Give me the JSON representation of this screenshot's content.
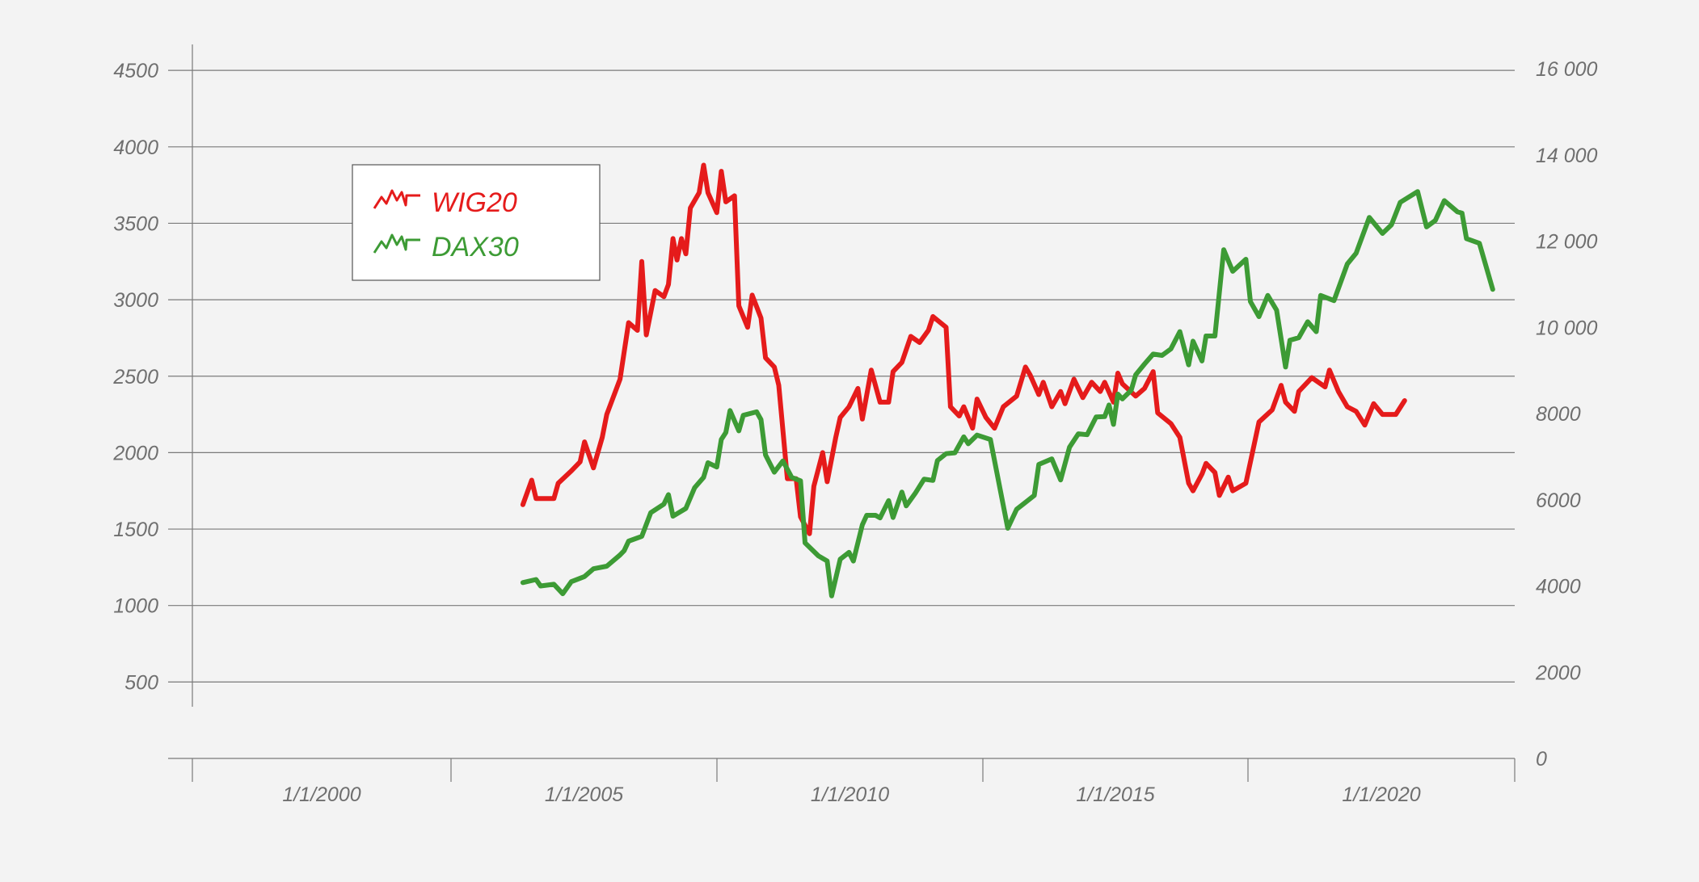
{
  "chart_data": {
    "type": "line",
    "legend": {
      "position": "top-left",
      "entries": [
        "WIG20",
        "DAX30"
      ]
    },
    "x_axis": {
      "type": "date",
      "range": [
        "1998-01-01",
        "2022-12-31"
      ],
      "tick_labels": [
        "1/1/2000",
        "1/1/2005",
        "1/1/2010",
        "1/1/2015",
        "1/1/2020"
      ],
      "grid": false
    },
    "y_left": {
      "range": [
        0,
        4500
      ],
      "tick_values": [
        500,
        1000,
        1500,
        2000,
        2500,
        3000,
        3500,
        4000,
        4500
      ],
      "tick_labels": [
        "500",
        "1000",
        "1500",
        "2000",
        "2500",
        "3000",
        "3500",
        "4000",
        "4500"
      ],
      "grid": true
    },
    "y_right": {
      "range": [
        0,
        16000
      ],
      "tick_values": [
        0,
        2000,
        4000,
        6000,
        8000,
        10000,
        12000,
        14000,
        16000
      ],
      "tick_labels": [
        "0",
        "2000",
        "4000",
        "6000",
        "8000",
        "10 000",
        "12 000",
        "14 000",
        "16 000"
      ]
    },
    "series": [
      {
        "name": "WIG20",
        "color": "#e51b1b",
        "axis": "left",
        "points": [
          [
            "2004-04-01",
            1660
          ],
          [
            "2004-06-01",
            1820
          ],
          [
            "2004-07-01",
            1700
          ],
          [
            "2004-09-01",
            1700
          ],
          [
            "2004-11-01",
            1700
          ],
          [
            "2004-12-01",
            1800
          ],
          [
            "2005-03-01",
            1880
          ],
          [
            "2005-05-01",
            1940
          ],
          [
            "2005-06-01",
            2070
          ],
          [
            "2005-08-01",
            1900
          ],
          [
            "2005-10-01",
            2100
          ],
          [
            "2005-11-01",
            2250
          ],
          [
            "2006-02-01",
            2480
          ],
          [
            "2006-04-01",
            2850
          ],
          [
            "2006-06-01",
            2800
          ],
          [
            "2006-07-01",
            3250
          ],
          [
            "2006-08-01",
            2770
          ],
          [
            "2006-10-01",
            3060
          ],
          [
            "2006-12-01",
            3020
          ],
          [
            "2007-01-01",
            3100
          ],
          [
            "2007-02-01",
            3400
          ],
          [
            "2007-03-01",
            3260
          ],
          [
            "2007-04-01",
            3400
          ],
          [
            "2007-05-01",
            3300
          ],
          [
            "2007-06-01",
            3600
          ],
          [
            "2007-08-01",
            3700
          ],
          [
            "2007-09-01",
            3880
          ],
          [
            "2007-10-01",
            3700
          ],
          [
            "2007-12-01",
            3570
          ],
          [
            "2008-01-01",
            3840
          ],
          [
            "2008-02-01",
            3640
          ],
          [
            "2008-04-01",
            3680
          ],
          [
            "2008-05-01",
            2960
          ],
          [
            "2008-07-01",
            2820
          ],
          [
            "2008-08-01",
            3030
          ],
          [
            "2008-10-01",
            2880
          ],
          [
            "2008-11-01",
            2620
          ],
          [
            "2009-01-01",
            2560
          ],
          [
            "2009-02-01",
            2440
          ],
          [
            "2009-04-01",
            1830
          ],
          [
            "2009-06-01",
            1830
          ],
          [
            "2009-07-01",
            1580
          ],
          [
            "2009-09-01",
            1470
          ],
          [
            "2009-10-01",
            1780
          ],
          [
            "2009-12-01",
            2000
          ],
          [
            "2010-01-01",
            1810
          ],
          [
            "2010-03-01",
            2100
          ],
          [
            "2010-04-01",
            2230
          ],
          [
            "2010-06-01",
            2300
          ],
          [
            "2010-08-01",
            2420
          ],
          [
            "2010-09-01",
            2220
          ],
          [
            "2010-11-01",
            2540
          ],
          [
            "2011-01-01",
            2330
          ],
          [
            "2011-03-01",
            2330
          ],
          [
            "2011-04-01",
            2530
          ],
          [
            "2011-06-01",
            2590
          ],
          [
            "2011-08-01",
            2760
          ],
          [
            "2011-10-01",
            2720
          ],
          [
            "2011-12-01",
            2800
          ],
          [
            "2012-01-01",
            2890
          ],
          [
            "2012-04-01",
            2820
          ],
          [
            "2012-05-01",
            2300
          ],
          [
            "2012-07-01",
            2240
          ],
          [
            "2012-08-01",
            2300
          ],
          [
            "2012-10-01",
            2160
          ],
          [
            "2012-11-01",
            2350
          ],
          [
            "2013-01-01",
            2230
          ],
          [
            "2013-03-01",
            2160
          ],
          [
            "2013-05-01",
            2300
          ],
          [
            "2013-08-01",
            2370
          ],
          [
            "2013-10-01",
            2560
          ],
          [
            "2013-11-01",
            2510
          ],
          [
            "2014-01-01",
            2380
          ],
          [
            "2014-02-01",
            2460
          ],
          [
            "2014-04-01",
            2300
          ],
          [
            "2014-06-01",
            2400
          ],
          [
            "2014-07-01",
            2320
          ],
          [
            "2014-09-01",
            2480
          ],
          [
            "2014-11-01",
            2360
          ],
          [
            "2015-01-01",
            2460
          ],
          [
            "2015-03-01",
            2400
          ],
          [
            "2015-04-01",
            2460
          ],
          [
            "2015-06-01",
            2330
          ],
          [
            "2015-07-01",
            2520
          ],
          [
            "2015-08-01",
            2450
          ],
          [
            "2015-11-01",
            2370
          ],
          [
            "2016-01-01",
            2420
          ],
          [
            "2016-03-01",
            2530
          ],
          [
            "2016-04-01",
            2260
          ],
          [
            "2016-07-01",
            2190
          ],
          [
            "2016-09-01",
            2100
          ],
          [
            "2016-11-01",
            1800
          ],
          [
            "2016-12-01",
            1750
          ],
          [
            "2017-02-01",
            1860
          ],
          [
            "2017-03-01",
            1930
          ],
          [
            "2017-05-01",
            1870
          ],
          [
            "2017-06-01",
            1720
          ],
          [
            "2017-08-01",
            1840
          ],
          [
            "2017-09-01",
            1750
          ],
          [
            "2017-12-01",
            1800
          ],
          [
            "2018-03-01",
            2200
          ],
          [
            "2018-06-01",
            2280
          ],
          [
            "2018-08-01",
            2440
          ],
          [
            "2018-09-01",
            2330
          ],
          [
            "2018-11-01",
            2270
          ],
          [
            "2018-12-01",
            2400
          ],
          [
            "2019-03-01",
            2490
          ],
          [
            "2019-06-01",
            2430
          ],
          [
            "2019-07-01",
            2540
          ],
          [
            "2019-09-01",
            2400
          ],
          [
            "2019-11-01",
            2300
          ],
          [
            "2020-01-01",
            2270
          ],
          [
            "2020-03-01",
            2180
          ],
          [
            "2020-05-01",
            2320
          ],
          [
            "2020-07-01",
            2250
          ],
          [
            "2020-10-01",
            2250
          ],
          [
            "2020-12-01",
            2340
          ]
        ]
      },
      {
        "name": "DAX30",
        "color": "#3d9b35",
        "axis": "right",
        "points": [
          [
            "2004-04-01",
            4080
          ],
          [
            "2004-07-01",
            4150
          ],
          [
            "2004-08-01",
            4000
          ],
          [
            "2004-11-01",
            4040
          ],
          [
            "2005-01-01",
            3820
          ],
          [
            "2005-03-01",
            4100
          ],
          [
            "2005-06-01",
            4220
          ],
          [
            "2005-08-01",
            4400
          ],
          [
            "2005-11-01",
            4460
          ],
          [
            "2006-02-01",
            4720
          ],
          [
            "2006-03-01",
            4820
          ],
          [
            "2006-04-01",
            5040
          ],
          [
            "2006-07-01",
            5150
          ],
          [
            "2006-09-01",
            5700
          ],
          [
            "2006-12-01",
            5900
          ],
          [
            "2007-01-01",
            6120
          ],
          [
            "2007-02-01",
            5620
          ],
          [
            "2007-05-01",
            5800
          ],
          [
            "2007-07-01",
            6280
          ],
          [
            "2007-09-01",
            6520
          ],
          [
            "2007-10-01",
            6860
          ],
          [
            "2007-12-01",
            6760
          ],
          [
            "2008-01-01",
            7400
          ],
          [
            "2008-02-01",
            7560
          ],
          [
            "2008-03-01",
            8070
          ],
          [
            "2008-05-01",
            7600
          ],
          [
            "2008-06-01",
            7960
          ],
          [
            "2008-09-01",
            8040
          ],
          [
            "2008-10-01",
            7860
          ],
          [
            "2008-11-01",
            7040
          ],
          [
            "2009-01-01",
            6640
          ],
          [
            "2009-03-01",
            6900
          ],
          [
            "2009-05-01",
            6520
          ],
          [
            "2009-07-01",
            6440
          ],
          [
            "2009-08-01",
            5000
          ],
          [
            "2009-11-01",
            4700
          ],
          [
            "2010-01-01",
            4580
          ],
          [
            "2010-02-01",
            3770
          ],
          [
            "2010-04-01",
            4620
          ],
          [
            "2010-06-01",
            4780
          ],
          [
            "2010-07-01",
            4580
          ],
          [
            "2010-09-01",
            5420
          ],
          [
            "2010-10-01",
            5640
          ],
          [
            "2010-12-01",
            5640
          ],
          [
            "2011-01-01",
            5580
          ],
          [
            "2011-03-01",
            5980
          ],
          [
            "2011-04-01",
            5590
          ],
          [
            "2011-06-01",
            6180
          ],
          [
            "2011-07-01",
            5860
          ],
          [
            "2011-09-01",
            6150
          ],
          [
            "2011-11-01",
            6480
          ],
          [
            "2012-01-01",
            6450
          ],
          [
            "2012-02-01",
            6910
          ],
          [
            "2012-04-01",
            7070
          ],
          [
            "2012-06-01",
            7090
          ],
          [
            "2012-08-01",
            7460
          ],
          [
            "2012-09-01",
            7300
          ],
          [
            "2012-11-01",
            7500
          ],
          [
            "2013-02-01",
            7400
          ],
          [
            "2013-06-01",
            5340
          ],
          [
            "2013-08-01",
            5780
          ],
          [
            "2013-12-01",
            6100
          ],
          [
            "2014-01-01",
            6820
          ],
          [
            "2014-04-01",
            6950
          ],
          [
            "2014-06-01",
            6460
          ],
          [
            "2014-08-01",
            7220
          ],
          [
            "2014-10-01",
            7530
          ],
          [
            "2014-12-01",
            7510
          ],
          [
            "2015-02-01",
            7920
          ],
          [
            "2015-04-01",
            7930
          ],
          [
            "2015-05-01",
            8200
          ],
          [
            "2015-06-01",
            7750
          ],
          [
            "2015-07-01",
            8450
          ],
          [
            "2015-08-01",
            8340
          ],
          [
            "2015-10-01",
            8540
          ],
          [
            "2015-11-01",
            8900
          ],
          [
            "2016-01-01",
            9150
          ],
          [
            "2016-03-01",
            9380
          ],
          [
            "2016-05-01",
            9350
          ],
          [
            "2016-07-01",
            9500
          ],
          [
            "2016-09-01",
            9900
          ],
          [
            "2016-11-01",
            9130
          ],
          [
            "2016-12-01",
            9680
          ],
          [
            "2017-02-01",
            9220
          ],
          [
            "2017-03-01",
            9800
          ],
          [
            "2017-05-01",
            9800
          ],
          [
            "2017-07-01",
            11800
          ],
          [
            "2017-09-01",
            11300
          ],
          [
            "2017-12-01",
            11580
          ],
          [
            "2018-01-01",
            10600
          ],
          [
            "2018-03-01",
            10250
          ],
          [
            "2018-05-01",
            10740
          ],
          [
            "2018-07-01",
            10400
          ],
          [
            "2018-09-01",
            9080
          ],
          [
            "2018-10-01",
            9700
          ],
          [
            "2018-12-01",
            9760
          ],
          [
            "2019-02-01",
            10130
          ],
          [
            "2019-04-01",
            9900
          ],
          [
            "2019-05-01",
            10740
          ],
          [
            "2019-08-01",
            10620
          ],
          [
            "2019-11-01",
            11470
          ],
          [
            "2020-01-01",
            11720
          ],
          [
            "2020-04-01",
            12550
          ],
          [
            "2020-07-01",
            12180
          ],
          [
            "2020-09-01",
            12380
          ],
          [
            "2020-11-01",
            12900
          ],
          [
            "2021-03-01",
            13150
          ],
          [
            "2021-05-01",
            12330
          ],
          [
            "2021-07-01",
            12480
          ],
          [
            "2021-09-01",
            12940
          ],
          [
            "2021-12-01",
            12680
          ],
          [
            "2022-01-01",
            12650
          ],
          [
            "2022-02-01",
            12060
          ],
          [
            "2022-05-01",
            11950
          ],
          [
            "2022-08-01",
            10880
          ]
        ]
      }
    ]
  }
}
